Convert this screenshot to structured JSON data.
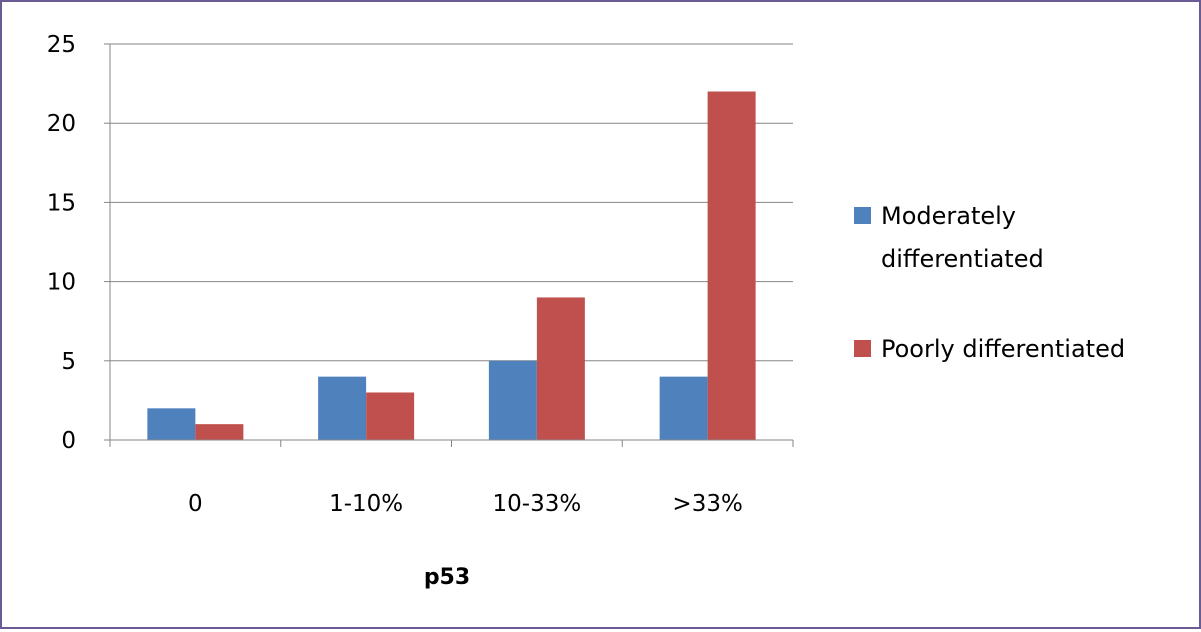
{
  "chart_data": {
    "type": "bar",
    "categories": [
      "0",
      "1-10%",
      "10-33%",
      ">33%"
    ],
    "series": [
      {
        "name": "Moderately differentiated",
        "values": [
          2,
          4,
          5,
          4
        ],
        "color": "#4f81bd"
      },
      {
        "name": "Poorly differentiated",
        "values": [
          1,
          3,
          9,
          22
        ],
        "color": "#c0504d"
      }
    ],
    "title": "",
    "xlabel": "p53",
    "ylabel": "",
    "ylim": [
      0,
      25
    ],
    "yticks": [
      0,
      5,
      10,
      15,
      20,
      25
    ],
    "grid": true,
    "legend_position": "right",
    "legend_lines": [
      [
        "Moderately",
        "differentiated"
      ],
      [
        "Poorly differentiated"
      ]
    ]
  }
}
